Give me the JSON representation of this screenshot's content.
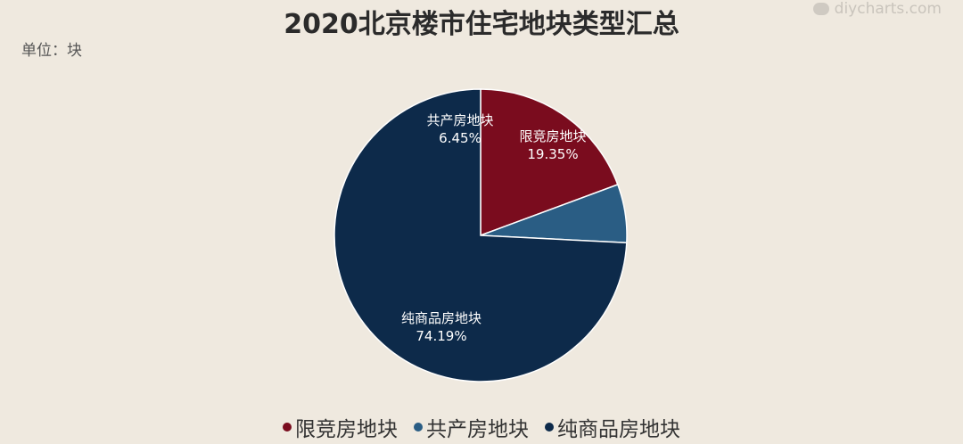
{
  "title": "2020北京楼市住宅地块类型汇总",
  "unit_label": "单位：块",
  "watermark": "diycharts.com",
  "colors": {
    "background": "#efe9df"
  },
  "chart_data": {
    "type": "pie",
    "title": "2020北京楼市住宅地块类型汇总",
    "unit": "单位：块",
    "legend_position": "bottom",
    "slices": [
      {
        "name": "限竞房地块",
        "value": 19.35,
        "label": "19.35%",
        "color": "#7a0c1e",
        "icon": "dot"
      },
      {
        "name": "共产房地块",
        "value": 6.45,
        "label": "6.45%",
        "color": "#2a5d84",
        "icon": "dot"
      },
      {
        "name": "纯商品房地块",
        "value": 74.19,
        "label": "74.19%",
        "color": "#0d2a4a",
        "icon": "dot"
      }
    ]
  }
}
